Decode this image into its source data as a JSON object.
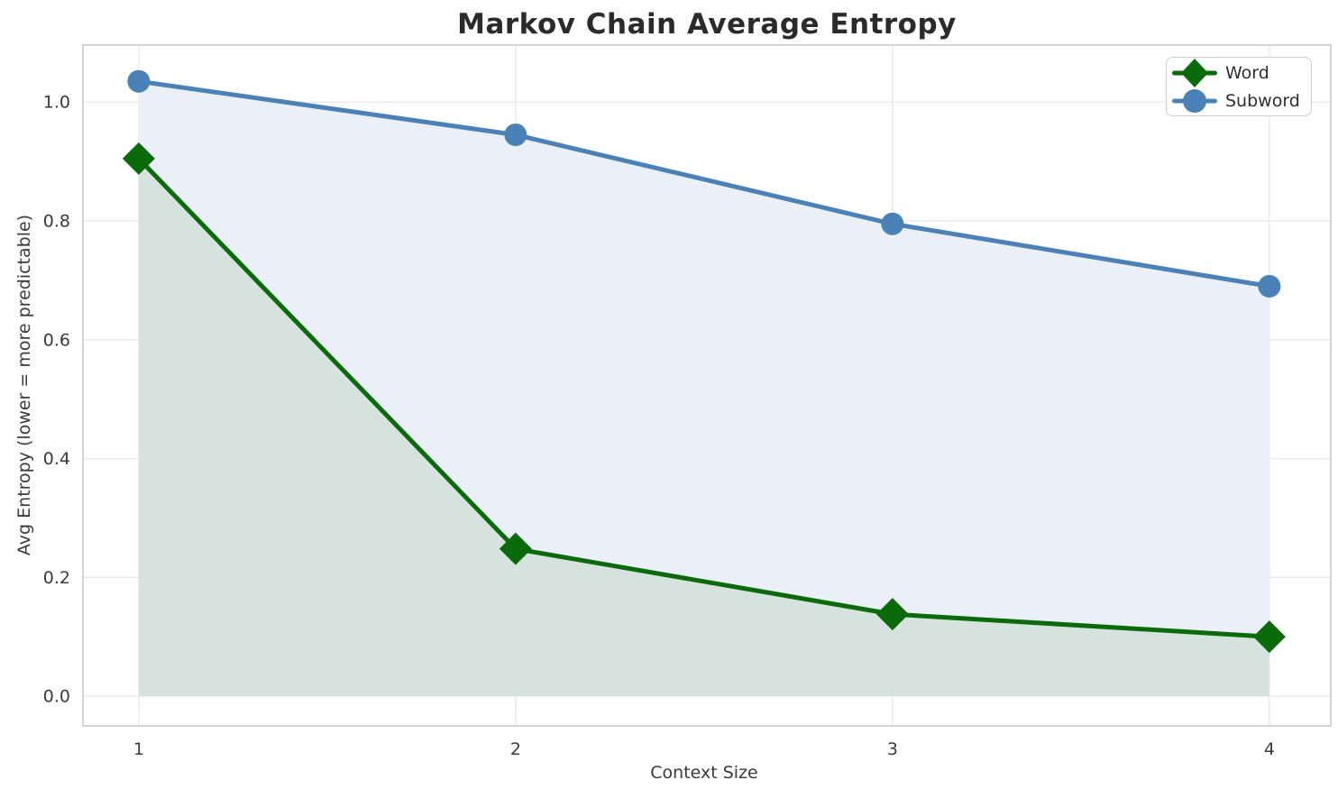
{
  "chart_data": {
    "type": "line",
    "title": "Markov Chain Average Entropy",
    "xlabel": "Context Size",
    "ylabel": "Avg Entropy (lower = more predictable)",
    "x": [
      1,
      2,
      3,
      4
    ],
    "series": [
      {
        "name": "Word",
        "marker": "diamond",
        "color": "#0b6b0b",
        "area_fill": "#d6e2de",
        "values": [
          0.905,
          0.248,
          0.138,
          0.1
        ]
      },
      {
        "name": "Subword",
        "marker": "circle",
        "color": "#4a81b6",
        "area_fill": "#ebf0f8",
        "values": [
          1.035,
          0.945,
          0.795,
          0.69
        ]
      }
    ],
    "xticks": [
      1,
      2,
      3,
      4
    ],
    "xtick_labels": [
      "1",
      "2",
      "3",
      "4"
    ],
    "yticks": [
      0.0,
      0.2,
      0.4,
      0.6,
      0.8,
      1.0
    ],
    "ytick_labels": [
      "0.0",
      "0.2",
      "0.4",
      "0.6",
      "0.8",
      "1.0"
    ],
    "xlim": [
      0.852,
      4.163
    ],
    "ylim": [
      -0.05,
      1.096
    ],
    "grid": true,
    "legend_position": "upper right",
    "grid_color": "#e7e7e7",
    "spine_color": "#c9c9c9",
    "tick_label_color": "#3a3a3a",
    "title_color": "#2b2b2b"
  }
}
